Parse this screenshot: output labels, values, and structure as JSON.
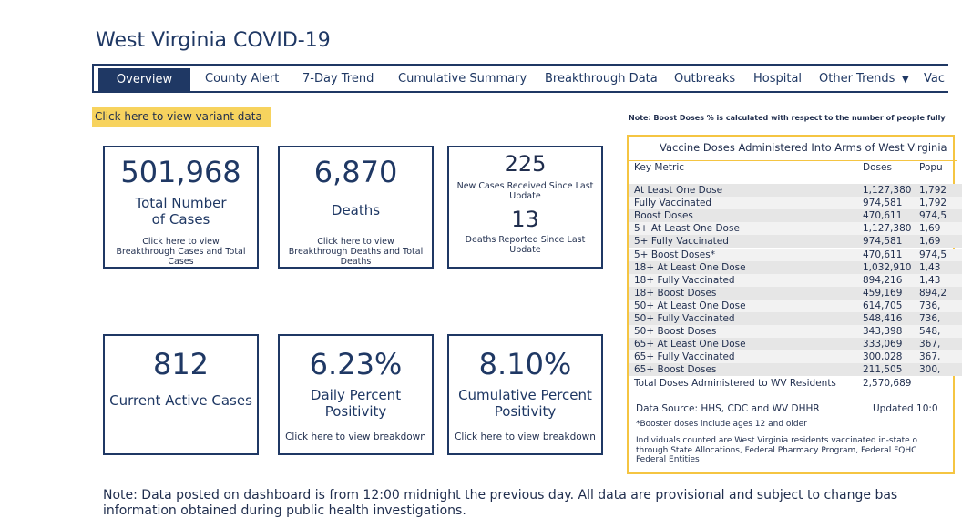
{
  "header": {
    "title": "West Virginia COVID-19"
  },
  "nav": [
    "Overview",
    "County Alert",
    "7-Day Trend",
    "Cumulative Summary",
    "Breakthrough Data",
    "Outbreaks",
    "Hospital",
    "Other Trends",
    "Vac"
  ],
  "variant_link": "Click here to view variant data",
  "cards": [
    {
      "value": "501,968",
      "label": "Total Number of Cases",
      "link": "Click here to view Breakthrough Cases and Total Cases"
    },
    {
      "value": "6,870",
      "label": "Deaths",
      "link": "Click here to view Breakthrough Deaths and Total Deaths"
    },
    {
      "value": "225",
      "label": "New Cases Received Since Last Update",
      "value2": "13",
      "label2": "Deaths Reported Since Last Update"
    },
    {
      "value": "812",
      "label": "Current Active Cases"
    },
    {
      "value": "6.23%",
      "label": "Daily Percent Positivity",
      "link": "Click here to view breakdown"
    },
    {
      "value": "8.10%",
      "label": "Cumulative Percent Positivity",
      "link": "Click here to view breakdown"
    }
  ],
  "vaccine": {
    "note": "Note: Boost Doses % is calculated with respect to the number of people fully",
    "title": "Vaccine Doses Administered Into Arms of West Virginia",
    "columns": [
      "Key Metric",
      "Doses",
      "Popu"
    ],
    "rows": [
      [
        "At Least One Dose",
        "1,127,380",
        "1,792"
      ],
      [
        "Fully Vaccinated",
        "974,581",
        "1,792"
      ],
      [
        "Boost Doses",
        "470,611",
        "974,5"
      ],
      [
        "5+ At Least One Dose",
        "1,127,380",
        "1,69"
      ],
      [
        "5+ Fully Vaccinated",
        "974,581",
        "1,69"
      ],
      [
        "5+ Boost Doses*",
        "470,611",
        "974,5"
      ],
      [
        "18+ At Least One Dose",
        "1,032,910",
        "1,43"
      ],
      [
        "18+ Fully Vaccinated",
        "894,216",
        "1,43"
      ],
      [
        "18+ Boost Doses",
        "459,169",
        "894,2"
      ],
      [
        "50+ At Least One Dose",
        "614,705",
        "736,"
      ],
      [
        "50+ Fully Vaccinated",
        "548,416",
        "736,"
      ],
      [
        "50+ Boost Doses",
        "343,398",
        "548,"
      ],
      [
        "65+ At Least One Dose",
        "333,069",
        "367,"
      ],
      [
        "65+ Fully Vaccinated",
        "300,028",
        "367,"
      ],
      [
        "65+ Boost Doses",
        "211,505",
        "300,"
      ],
      [
        "Total Doses Administered to WV Residents",
        "2,570,689",
        ""
      ]
    ],
    "source": "Data Source: HHS, CDC and WV DHHR",
    "updated": "Updated 10:0",
    "booster_note": "*Booster doses include ages 12 and older",
    "individuals": [
      "Individuals counted are West Virginia residents vaccinated in-state o",
      "through State Allocations, Federal Pharmacy Program, Federal FQHC",
      "Federal Entities"
    ]
  },
  "footer_note": [
    "Note: Data posted on dashboard is from 12:00 midnight the previous day. All data are provisional and subject to change bas",
    "information obtained during public health investigations."
  ]
}
